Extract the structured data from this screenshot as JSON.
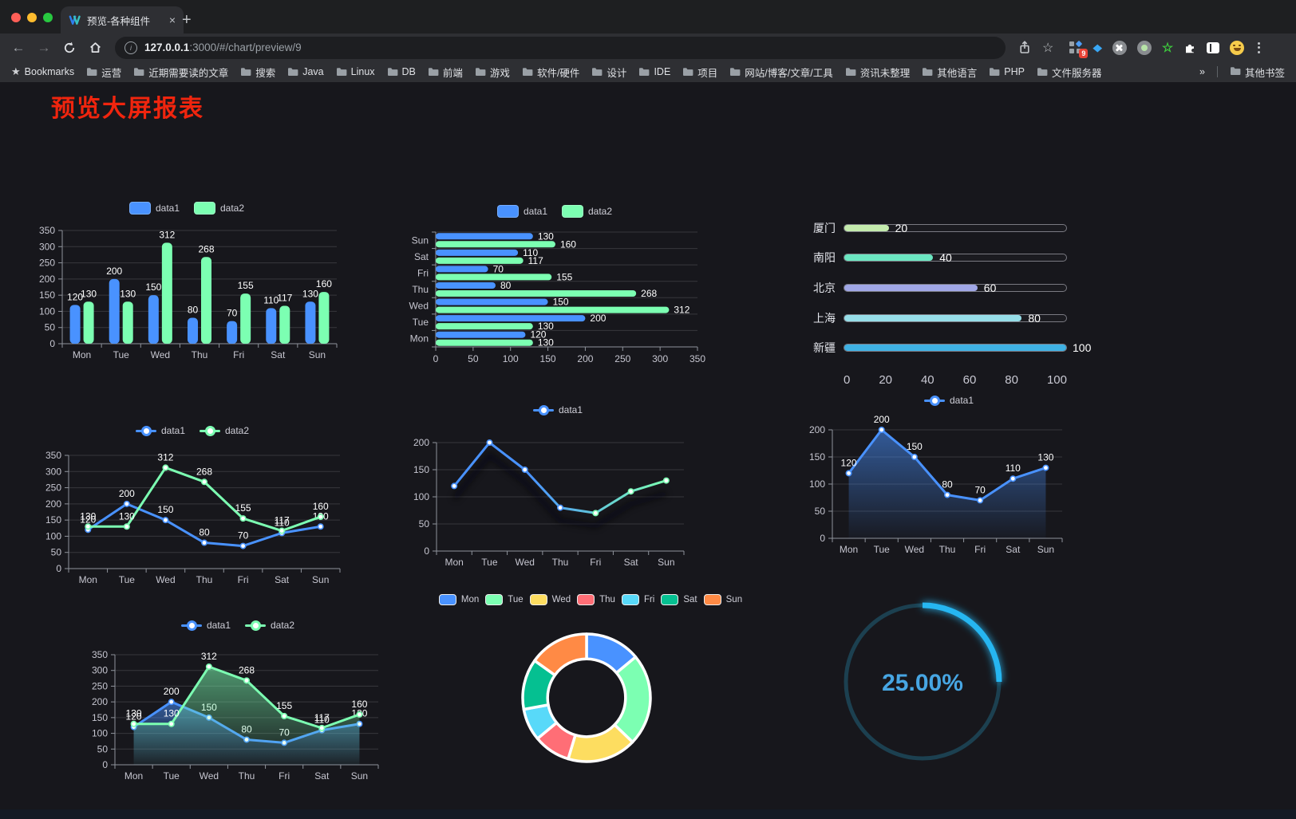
{
  "browser": {
    "window_controls": {
      "close": "#ff5f57",
      "minimize": "#febc2e",
      "zoom": "#28c840"
    },
    "tab": {
      "title": "预览-各种组件",
      "close": "×",
      "new_tab": "+"
    },
    "url": {
      "host": "127.0.0.1",
      "rest": ":3000/#/chart/preview/9"
    },
    "bookmarks_bar": {
      "label": "Bookmarks",
      "items": [
        "运营",
        "近期需要读的文章",
        "搜索",
        "Java",
        "Linux",
        "DB",
        "前端",
        "游戏",
        "软件/硬件",
        "设计",
        "IDE",
        "项目",
        "网站/博客/文章/工具",
        "资讯未整理",
        "其他语言",
        "PHP",
        "文件服务器"
      ],
      "overflow": "»",
      "other_bookmarks": "其他书签"
    },
    "extensions_badge": "9"
  },
  "page": {
    "title": "预览大屏报表",
    "title_color": "#f0250e",
    "background": "#17171c"
  },
  "chart_data": [
    {
      "id": "grouped-bar",
      "type": "bar",
      "categories": [
        "Mon",
        "Tue",
        "Wed",
        "Thu",
        "Fri",
        "Sat",
        "Sun"
      ],
      "series": [
        {
          "name": "data1",
          "color": "#4992ff",
          "values": [
            120,
            200,
            150,
            80,
            70,
            110,
            130
          ]
        },
        {
          "name": "data2",
          "color": "#7cffb2",
          "values": [
            130,
            130,
            312,
            268,
            155,
            117,
            160
          ]
        }
      ],
      "ylim": [
        0,
        350
      ],
      "ytick": 50,
      "show_labels": true,
      "legend_style": "chip"
    },
    {
      "id": "grouped-hbar",
      "type": "hbar",
      "categories": [
        "Mon",
        "Tue",
        "Wed",
        "Thu",
        "Fri",
        "Sat",
        "Sun"
      ],
      "series": [
        {
          "name": "data1",
          "color": "#4992ff",
          "values": [
            120,
            200,
            150,
            80,
            70,
            110,
            130
          ]
        },
        {
          "name": "data2",
          "color": "#7cffb2",
          "values": [
            130,
            130,
            312,
            268,
            155,
            117,
            160
          ]
        }
      ],
      "xlim": [
        0,
        350
      ],
      "xtick": 50,
      "show_labels": true,
      "legend_style": "chip"
    },
    {
      "id": "city-progress",
      "type": "progress",
      "rows": [
        {
          "label": "厦门",
          "value": 20,
          "color": "#c4ebad"
        },
        {
          "label": "南阳",
          "value": 40,
          "color": "#6be6c1"
        },
        {
          "label": "北京",
          "value": 60,
          "color": "#a0a7e6"
        },
        {
          "label": "上海",
          "value": 80,
          "color": "#96dee8"
        },
        {
          "label": "新疆",
          "value": 100,
          "color": "#3fb1e3"
        }
      ],
      "xlim": [
        0,
        100
      ],
      "xtick": 20
    },
    {
      "id": "two-line",
      "type": "line",
      "categories": [
        "Mon",
        "Tue",
        "Wed",
        "Thu",
        "Fri",
        "Sat",
        "Sun"
      ],
      "series": [
        {
          "name": "data1",
          "color": "#4992ff",
          "values": [
            120,
            200,
            150,
            80,
            70,
            110,
            130
          ]
        },
        {
          "name": "data2",
          "color": "#7cffb2",
          "values": [
            130,
            130,
            312,
            268,
            155,
            117,
            160
          ]
        }
      ],
      "ylim": [
        0,
        350
      ],
      "ytick": 50,
      "show_labels": true,
      "legend_style": "dot"
    },
    {
      "id": "gradient-line",
      "type": "line",
      "categories": [
        "Mon",
        "Tue",
        "Wed",
        "Thu",
        "Fri",
        "Sat",
        "Sun"
      ],
      "series": [
        {
          "name": "data1",
          "color": "#4992ff",
          "gradient": [
            "#4992ff",
            "#7cffb2"
          ],
          "values": [
            120,
            200,
            150,
            80,
            70,
            110,
            130
          ]
        }
      ],
      "ylim": [
        0,
        200
      ],
      "ytick": 50,
      "show_labels": false,
      "shadow": true,
      "legend_style": "dot"
    },
    {
      "id": "area-line",
      "type": "line",
      "categories": [
        "Mon",
        "Tue",
        "Wed",
        "Thu",
        "Fri",
        "Sat",
        "Sun"
      ],
      "series": [
        {
          "name": "data1",
          "color": "#4992ff",
          "area": true,
          "values": [
            120,
            200,
            150,
            80,
            70,
            110,
            130
          ]
        }
      ],
      "ylim": [
        0,
        200
      ],
      "ytick": 50,
      "show_labels": true,
      "legend_style": "dot"
    },
    {
      "id": "two-area-line",
      "type": "line",
      "categories": [
        "Mon",
        "Tue",
        "Wed",
        "Thu",
        "Fri",
        "Sat",
        "Sun"
      ],
      "series": [
        {
          "name": "data1",
          "color": "#4992ff",
          "area": true,
          "values": [
            120,
            200,
            150,
            80,
            70,
            110,
            130
          ]
        },
        {
          "name": "data2",
          "color": "#7cffb2",
          "area": true,
          "values": [
            130,
            130,
            312,
            268,
            155,
            117,
            160
          ]
        }
      ],
      "ylim": [
        0,
        350
      ],
      "ytick": 50,
      "show_labels": true,
      "legend_style": "dot"
    },
    {
      "id": "week-donut",
      "type": "pie",
      "labels": [
        "Mon",
        "Tue",
        "Wed",
        "Thu",
        "Fri",
        "Sat",
        "Sun"
      ],
      "values": [
        120,
        200,
        150,
        80,
        70,
        110,
        130
      ],
      "colors": [
        "#4992ff",
        "#7cffb2",
        "#fddd60",
        "#ff6e76",
        "#58d9f9",
        "#05c091",
        "#ff8a45"
      ],
      "border_color": "#ffffff",
      "inner_radius_ratio": 0.61
    },
    {
      "id": "percent-gauge",
      "type": "gauge",
      "value": 25,
      "display": "25.00%",
      "color": "#27b6f1",
      "track_color": "#1c4050",
      "text_color": "#47a6e3"
    }
  ]
}
